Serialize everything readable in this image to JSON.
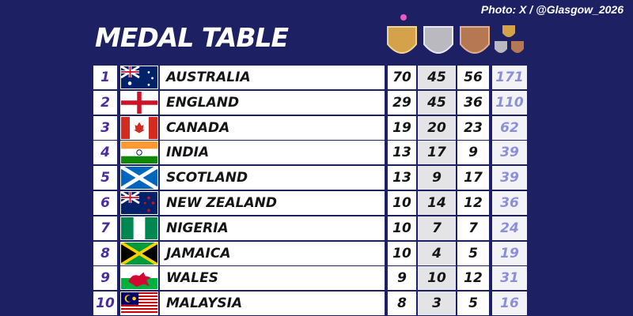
{
  "credit": "Photo: X / @Glasgow_2026",
  "title": "MEDAL TABLE",
  "table": {
    "rows": [
      [
        1,
        "AUSTRALIA",
        70,
        45,
        56,
        171
      ],
      [
        2,
        "ENGLAND",
        29,
        45,
        36,
        110
      ],
      [
        3,
        "CANADA",
        19,
        20,
        23,
        62
      ],
      [
        4,
        "INDIA",
        13,
        17,
        9,
        39
      ],
      [
        5,
        "SCOTLAND",
        13,
        9,
        17,
        39
      ],
      [
        6,
        "NEW ZEALAND",
        10,
        14,
        12,
        36
      ],
      [
        7,
        "NIGERIA",
        10,
        7,
        7,
        24
      ],
      [
        8,
        "JAMAICA",
        10,
        4,
        5,
        19
      ],
      [
        9,
        "WALES",
        9,
        10,
        12,
        31
      ],
      [
        10,
        "MALAYSIA",
        8,
        3,
        5,
        16
      ]
    ]
  }
}
